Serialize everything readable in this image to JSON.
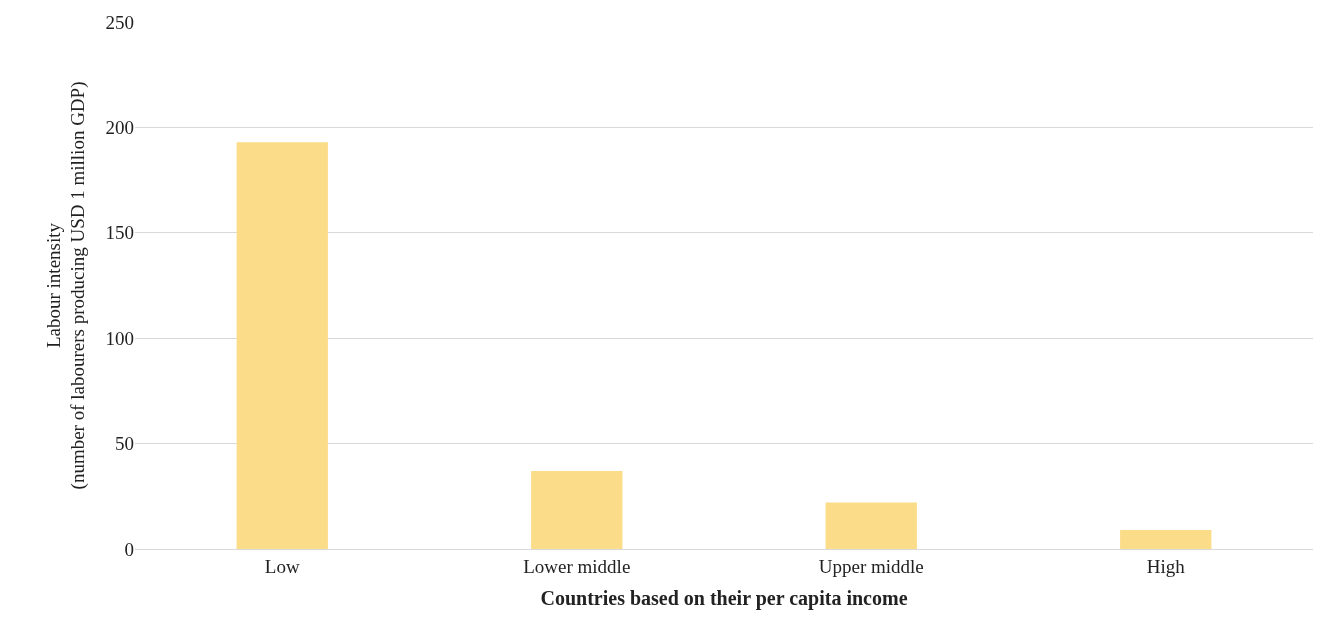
{
  "chart_data": {
    "type": "bar",
    "xlabel": "Countries based on their per capita income",
    "ylabel": "Labour intensity\n(number of labourers producing USD 1 million GDP)",
    "categories": [
      "Low",
      "Lower middle",
      "Upper middle",
      "High"
    ],
    "values": [
      193,
      37,
      22,
      9
    ],
    "color": "#fbdc88",
    "ylim": [
      0,
      250
    ],
    "yticks": [
      0,
      50,
      100,
      150,
      200,
      250
    ],
    "grid": "y"
  }
}
